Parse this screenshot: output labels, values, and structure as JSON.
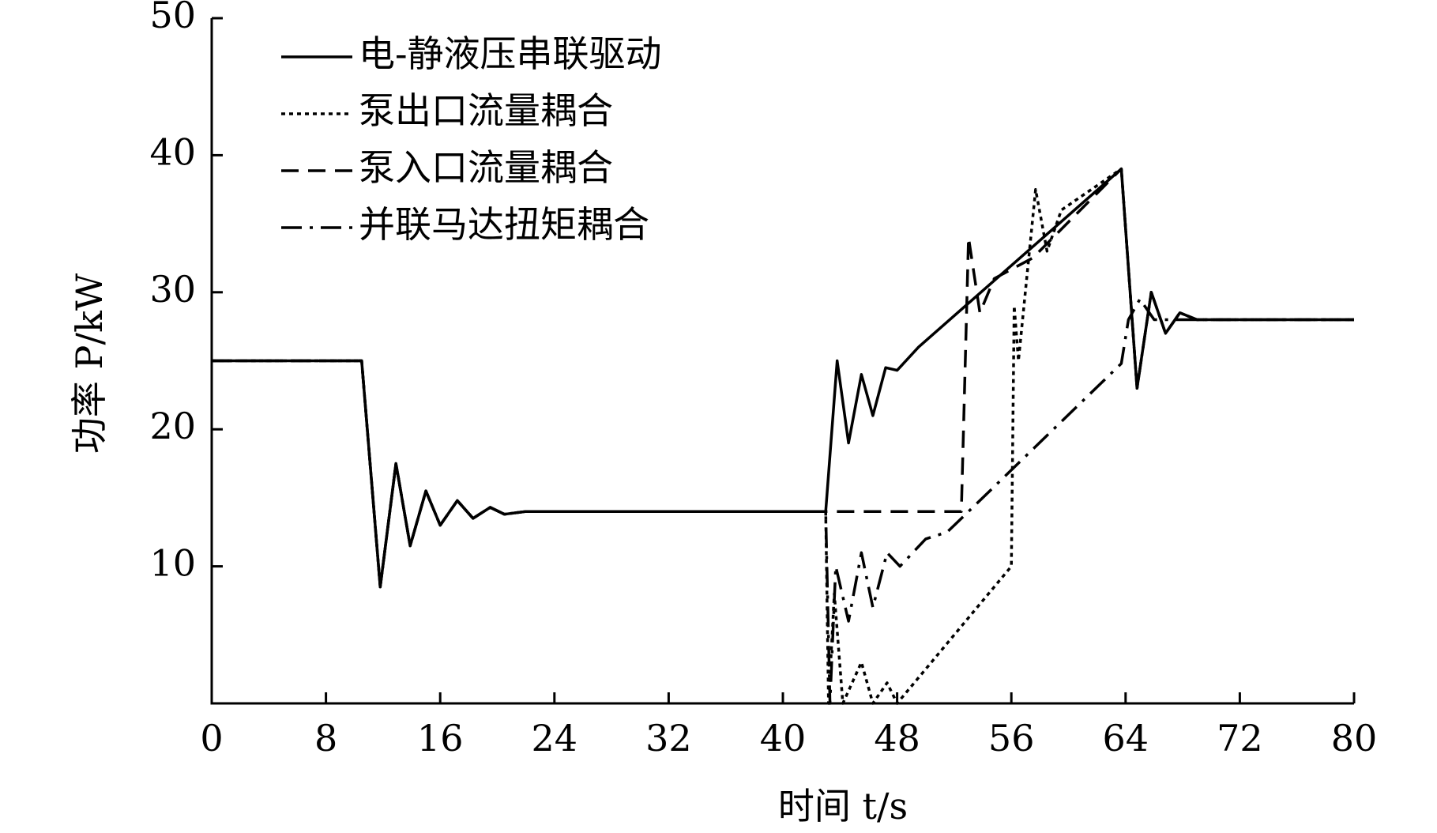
{
  "chart_data": {
    "type": "line",
    "xlabel": "时间 t/s",
    "ylabel": "功率 P/kW",
    "xlim": [
      0,
      80
    ],
    "ylim": [
      0,
      50
    ],
    "xticks": [
      0,
      8,
      16,
      24,
      32,
      40,
      48,
      56,
      64,
      72,
      80
    ],
    "yticks": [
      10,
      20,
      30,
      40,
      50
    ],
    "grid": false,
    "legend": "upper left",
    "series": [
      {
        "name": "电-静液压串联驱动",
        "color": "#000000",
        "style": "solid",
        "x": [
          0,
          10.5,
          11.8,
          12.9,
          13.9,
          15,
          16,
          17.2,
          18.3,
          19.5,
          20.5,
          22,
          43,
          43.8,
          44.6,
          45.5,
          46.3,
          47.2,
          48,
          49.5,
          63.7,
          64.8,
          65.8,
          66.8,
          67.8,
          69,
          80
        ],
        "values": [
          25,
          25,
          8.5,
          17.5,
          11.5,
          15.5,
          13,
          14.8,
          13.5,
          14.3,
          13.8,
          14,
          14,
          25,
          19,
          24,
          21,
          24.5,
          24.3,
          26,
          39,
          23,
          30,
          27,
          28.5,
          28,
          28
        ]
      },
      {
        "name": "泵出口流量耦合",
        "color": "#000000",
        "style": "dotted",
        "x": [
          0,
          10.5,
          11.8,
          12.9,
          13.9,
          15,
          16,
          17.2,
          18.3,
          19.5,
          20.5,
          22,
          43,
          43.2,
          43.6,
          44.2,
          45.5,
          46.3,
          47.3,
          48,
          56,
          56.2,
          56.5,
          57.7,
          58.5,
          59.5,
          63.7,
          64.8,
          65.8,
          66.8,
          67.8,
          69,
          80
        ],
        "values": [
          25,
          25,
          8.5,
          17.5,
          11.5,
          15.5,
          13,
          14.8,
          13.5,
          14.3,
          13.8,
          14,
          14,
          0,
          8,
          0,
          3,
          0,
          1.5,
          0,
          10,
          29,
          25,
          37.5,
          33,
          36,
          39,
          23,
          30,
          27,
          28.5,
          28,
          28
        ]
      },
      {
        "name": "泵入口流量耦合",
        "color": "#000000",
        "style": "dashed",
        "x": [
          0,
          10.5,
          11.8,
          12.9,
          13.9,
          15,
          16,
          17.2,
          18.3,
          19.5,
          20.5,
          22,
          43,
          52.5,
          53,
          53.8,
          54.8,
          57.5,
          63.7,
          64.8,
          65.8,
          66.8,
          67.8,
          69,
          80
        ],
        "values": [
          25,
          25,
          8.5,
          17.5,
          11.5,
          15.5,
          13,
          14.8,
          13.5,
          14.3,
          13.8,
          14,
          14,
          14,
          34,
          28.5,
          31,
          32.5,
          39,
          23,
          30,
          27,
          28.5,
          28,
          28
        ]
      },
      {
        "name": "并联马达扭矩耦合",
        "color": "#000000",
        "style": "dashdot",
        "x": [
          0,
          10.5,
          11.8,
          12.9,
          13.9,
          15,
          16,
          17.2,
          18.3,
          19.5,
          20.5,
          22,
          43,
          43.3,
          43.7,
          44.6,
          45.5,
          46.3,
          47.3,
          48.2,
          50,
          51.5,
          53,
          63.7,
          64.2,
          65,
          66,
          80
        ],
        "values": [
          25,
          25,
          8.5,
          17.5,
          11.5,
          15.5,
          13,
          14.8,
          13.5,
          14.3,
          13.8,
          14,
          14,
          0,
          10,
          6,
          11,
          7,
          11,
          10,
          12,
          12.5,
          14,
          24.8,
          28,
          29.5,
          28,
          28
        ]
      }
    ]
  }
}
